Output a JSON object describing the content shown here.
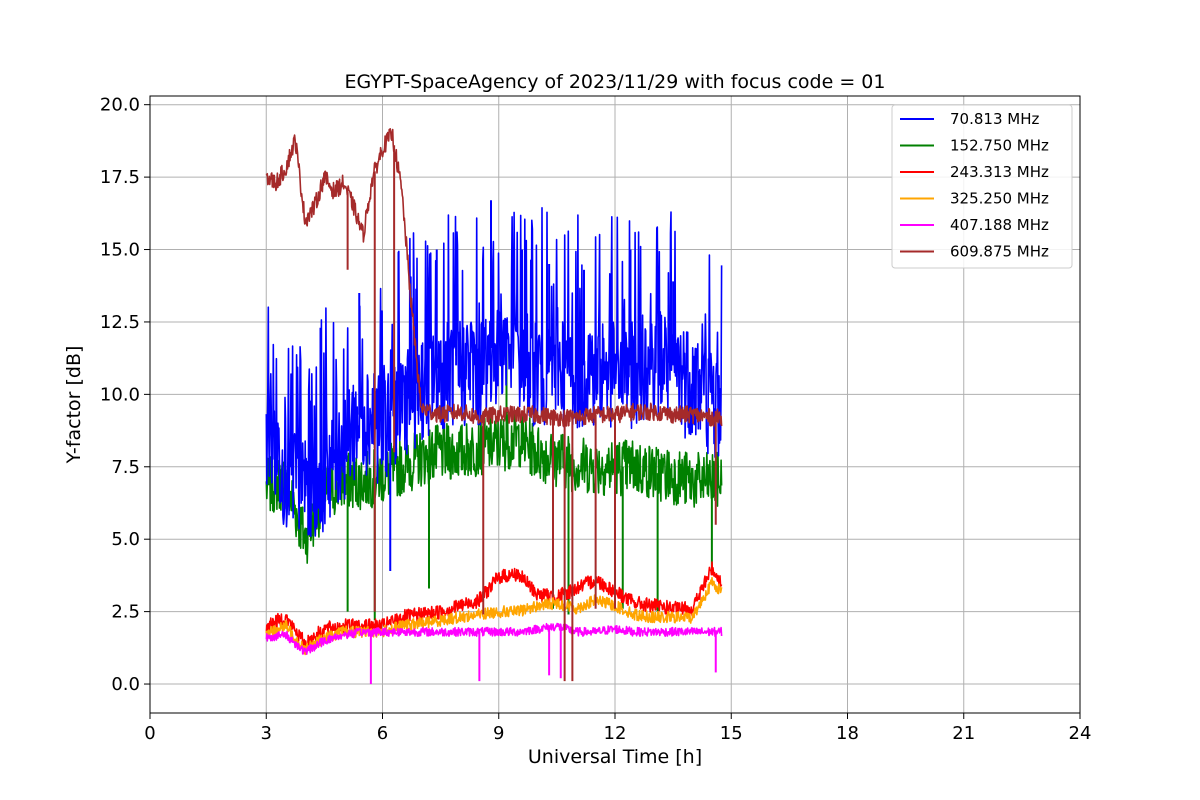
{
  "chart_data": {
    "type": "line",
    "title": "EGYPT-SpaceAgency of 2023/11/29 with focus code = 01",
    "xlabel": "Universal Time [h]",
    "ylabel": "Y-factor [dB]",
    "xlim": [
      0,
      24
    ],
    "ylim": [
      -1,
      20.3
    ],
    "xticks": [
      0,
      3,
      6,
      9,
      12,
      15,
      18,
      21,
      24
    ],
    "yticks": [
      "0.0",
      "2.5",
      "5.0",
      "7.5",
      "10.0",
      "12.5",
      "15.0",
      "17.5",
      "20.0"
    ],
    "grid": true,
    "legend_position": "top-right",
    "series": [
      {
        "name": " 70.813 MHz",
        "color": "#0000ff",
        "x": [
          3.0,
          3.5,
          4.0,
          4.5,
          5.0,
          5.5,
          6.0,
          6.5,
          7.0,
          7.5,
          8.0,
          8.5,
          9.0,
          9.5,
          10.0,
          10.5,
          11.0,
          11.5,
          12.0,
          12.5,
          13.0,
          13.5,
          14.0,
          14.5,
          14.75
        ],
        "y": [
          9.0,
          7.5,
          7.0,
          7.5,
          8.5,
          9.5,
          9.0,
          10.0,
          10.5,
          11.0,
          11.0,
          11.0,
          12.0,
          11.5,
          11.0,
          11.0,
          11.0,
          11.0,
          11.0,
          11.0,
          11.5,
          11.0,
          10.5,
          10.0,
          9.5
        ]
      },
      {
        "name": "152.750 MHz",
        "color": "#008000",
        "x": [
          3.0,
          3.5,
          4.0,
          4.5,
          5.0,
          5.5,
          6.0,
          6.5,
          7.0,
          7.5,
          8.0,
          8.5,
          9.0,
          9.5,
          10.0,
          10.5,
          11.0,
          11.5,
          12.0,
          12.5,
          13.0,
          13.5,
          14.0,
          14.5,
          14.75
        ],
        "y": [
          6.8,
          7.0,
          5.0,
          6.5,
          7.0,
          7.0,
          7.2,
          7.5,
          7.8,
          8.0,
          8.0,
          8.2,
          8.3,
          8.5,
          8.0,
          7.8,
          7.6,
          7.5,
          7.5,
          7.5,
          7.3,
          7.2,
          7.0,
          7.0,
          7.0
        ]
      },
      {
        "name": "243.313 MHz",
        "color": "#ff0000",
        "x": [
          3.0,
          3.5,
          4.0,
          4.5,
          5.0,
          5.5,
          6.0,
          6.5,
          7.0,
          7.5,
          8.0,
          8.5,
          9.0,
          9.5,
          10.0,
          10.5,
          11.0,
          11.5,
          12.0,
          12.5,
          13.0,
          13.5,
          14.0,
          14.5,
          14.75
        ],
        "y": [
          2.0,
          2.3,
          1.4,
          1.9,
          2.0,
          2.0,
          2.0,
          2.3,
          2.4,
          2.5,
          2.7,
          2.9,
          3.7,
          3.8,
          3.1,
          3.0,
          3.3,
          3.6,
          3.2,
          2.8,
          2.7,
          2.6,
          2.6,
          4.0,
          3.5
        ]
      },
      {
        "name": "325.250 MHz",
        "color": "#ffa500",
        "x": [
          3.0,
          3.5,
          4.0,
          4.5,
          5.0,
          5.5,
          6.0,
          6.5,
          7.0,
          7.5,
          8.0,
          8.5,
          9.0,
          9.5,
          10.0,
          10.5,
          11.0,
          11.5,
          12.0,
          12.5,
          13.0,
          13.5,
          14.0,
          14.5,
          14.75
        ],
        "y": [
          1.7,
          2.0,
          1.2,
          1.6,
          1.8,
          1.8,
          1.8,
          2.0,
          2.1,
          2.2,
          2.3,
          2.4,
          2.5,
          2.5,
          2.7,
          2.8,
          2.6,
          2.9,
          2.7,
          2.4,
          2.3,
          2.3,
          2.3,
          3.5,
          3.2
        ]
      },
      {
        "name": "407.188 MHz",
        "color": "#ff00ff",
        "x": [
          3.0,
          3.5,
          4.0,
          4.5,
          5.0,
          5.5,
          6.0,
          6.5,
          7.0,
          7.5,
          8.0,
          8.5,
          9.0,
          9.5,
          10.0,
          10.5,
          11.0,
          11.5,
          12.0,
          12.5,
          13.0,
          13.5,
          14.0,
          14.5,
          14.75
        ],
        "y": [
          1.6,
          1.7,
          1.1,
          1.5,
          1.7,
          1.8,
          1.8,
          1.8,
          1.8,
          1.8,
          1.8,
          1.8,
          1.8,
          1.8,
          1.9,
          2.0,
          1.8,
          1.8,
          1.9,
          1.8,
          1.8,
          1.8,
          1.8,
          1.8,
          1.8
        ]
      },
      {
        "name": "609.875 MHz",
        "color": "#a52a2a",
        "x": [
          3.0,
          3.25,
          3.5,
          3.75,
          4.0,
          4.25,
          4.5,
          4.75,
          5.0,
          5.25,
          5.5,
          5.75,
          6.0,
          6.25,
          6.5,
          6.75,
          7.0,
          7.5,
          8.0,
          8.5,
          9.0,
          9.5,
          10.0,
          10.5,
          11.0,
          11.5,
          12.0,
          12.5,
          13.0,
          13.5,
          14.0,
          14.5,
          14.75
        ],
        "y": [
          17.5,
          17.3,
          17.8,
          18.8,
          16.0,
          16.5,
          17.5,
          17.0,
          17.3,
          16.5,
          15.5,
          17.5,
          18.5,
          19.0,
          17.0,
          13.0,
          9.5,
          9.3,
          9.4,
          9.2,
          9.3,
          9.3,
          9.3,
          9.2,
          9.2,
          9.3,
          9.3,
          9.4,
          9.4,
          9.3,
          9.3,
          9.2,
          9.2
        ]
      }
    ],
    "spikes": [
      {
        "series": 0,
        "x": 4.4,
        "y": 12.3
      },
      {
        "series": 0,
        "x": 5.4,
        "y": 13.5
      },
      {
        "series": 0,
        "x": 7.4,
        "y": 15.0
      },
      {
        "series": 0,
        "x": 7.9,
        "y": 15.6
      },
      {
        "series": 0,
        "x": 8.8,
        "y": 16.7
      },
      {
        "series": 0,
        "x": 9.6,
        "y": 15.0
      },
      {
        "series": 0,
        "x": 10.3,
        "y": 14.5
      },
      {
        "series": 0,
        "x": 11.2,
        "y": 14.3
      },
      {
        "series": 0,
        "x": 12.4,
        "y": 15.0
      },
      {
        "series": 0,
        "x": 13.5,
        "y": 13.9
      },
      {
        "series": 0,
        "x": 6.2,
        "y": 3.9
      },
      {
        "series": 1,
        "x": 5.1,
        "y": 2.5
      },
      {
        "series": 1,
        "x": 5.8,
        "y": 2.2
      },
      {
        "series": 1,
        "x": 7.2,
        "y": 3.3
      },
      {
        "series": 1,
        "x": 10.4,
        "y": 2.6
      },
      {
        "series": 1,
        "x": 10.8,
        "y": 2.4
      },
      {
        "series": 1,
        "x": 12.2,
        "y": 2.6
      },
      {
        "series": 1,
        "x": 13.1,
        "y": 2.5
      },
      {
        "series": 1,
        "x": 14.5,
        "y": 3.8
      },
      {
        "series": 1,
        "x": 9.2,
        "y": 11.8
      },
      {
        "series": 4,
        "x": 5.7,
        "y": 0.0
      },
      {
        "series": 4,
        "x": 8.5,
        "y": 0.1
      },
      {
        "series": 4,
        "x": 10.3,
        "y": 0.3
      },
      {
        "series": 4,
        "x": 10.6,
        "y": 0.2
      },
      {
        "series": 4,
        "x": 14.6,
        "y": 0.4
      },
      {
        "series": 5,
        "x": 5.1,
        "y": 14.3
      },
      {
        "series": 5,
        "x": 5.8,
        "y": 2.5
      },
      {
        "series": 5,
        "x": 6.3,
        "y": 8.0
      },
      {
        "series": 5,
        "x": 8.6,
        "y": 2.4
      },
      {
        "series": 5,
        "x": 10.4,
        "y": 3.0
      },
      {
        "series": 5,
        "x": 10.7,
        "y": 0.1
      },
      {
        "series": 5,
        "x": 10.9,
        "y": 0.1
      },
      {
        "series": 5,
        "x": 11.5,
        "y": 2.6
      },
      {
        "series": 5,
        "x": 12.0,
        "y": 2.6
      },
      {
        "series": 5,
        "x": 14.6,
        "y": 5.5
      }
    ]
  }
}
